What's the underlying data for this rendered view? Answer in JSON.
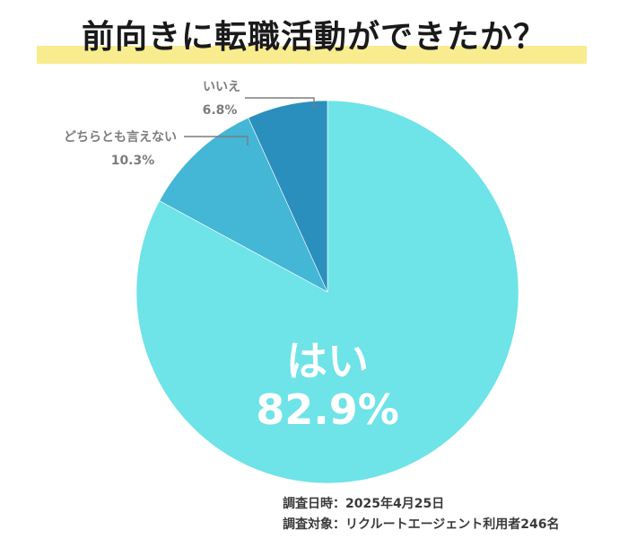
{
  "title": "前向きに転職活動ができたか？",
  "colors": {
    "highlight": "#f8ec8f",
    "yes": "#6ee3e8",
    "neutral": "#44b6d6",
    "no": "#2b8fbe",
    "label_gray": "#7d7d7d",
    "inner_label": "#ffffff"
  },
  "chart_data": {
    "type": "pie",
    "title": "前向きに転職活動ができたか？",
    "start": "12 o'clock",
    "direction": "clockwise",
    "slices": [
      {
        "label": "はい",
        "value": 82.9,
        "value_label": "82.9%"
      },
      {
        "label": "どちらとも言えない",
        "value": 10.3,
        "value_label": "10.3%"
      },
      {
        "label": "いいえ",
        "value": 6.8,
        "value_label": "6.8%"
      }
    ]
  },
  "footnotes": {
    "survey_date": "調査日時：2025年4月25日",
    "survey_target": "調査対象：リクルートエージェント利用者246名"
  }
}
